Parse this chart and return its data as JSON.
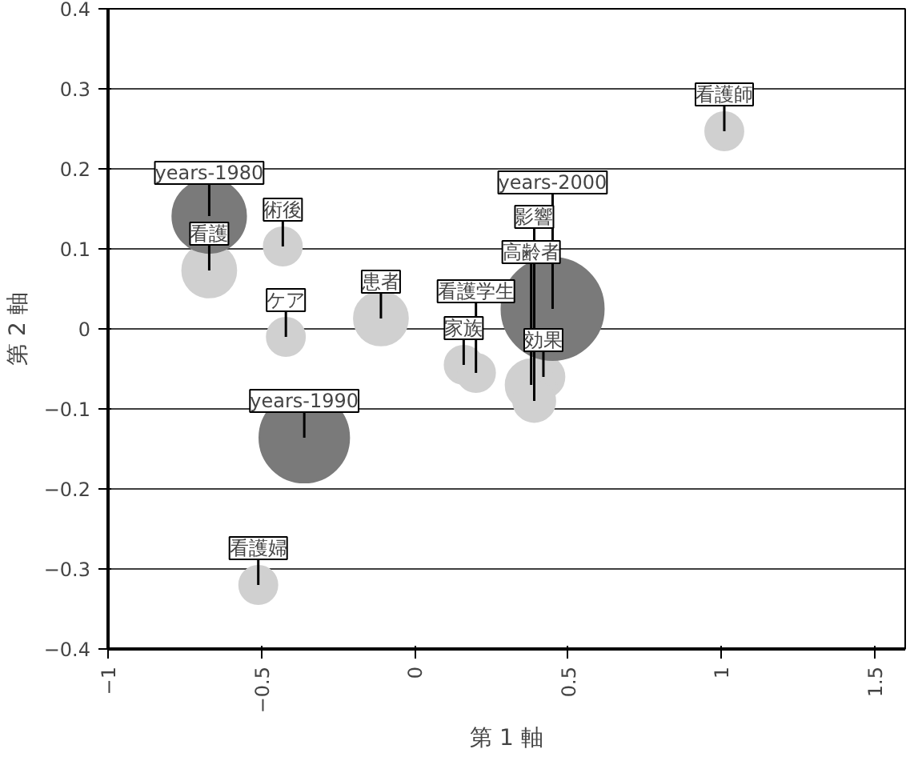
{
  "chart_data": {
    "type": "bubble",
    "xlabel": "第 1 軸",
    "ylabel": "第 2 軸",
    "xlim": [
      -1,
      1.6
    ],
    "ylim": [
      -0.4,
      0.4
    ],
    "xticks": [
      {
        "value": -1,
        "label": "−1"
      },
      {
        "value": -0.5,
        "label": "−0.5"
      },
      0,
      0.5,
      1,
      1.5
    ],
    "yticks": [
      {
        "value": -0.4,
        "label": "−0.4"
      },
      {
        "value": -0.3,
        "label": "−0.3"
      },
      {
        "value": -0.2,
        "label": "−0.2"
      },
      {
        "value": -0.1,
        "label": "−0.1"
      },
      0,
      0.1,
      0.2,
      0.3,
      0.4
    ],
    "grid": "y",
    "marker": "circle",
    "series": [
      {
        "color": "#d0d0d0",
        "x": [
          -0.67,
          -0.43,
          -0.42,
          -0.11,
          -0.51,
          1.01,
          0.16,
          0.2,
          0.42,
          0.38,
          0.39
        ],
        "values": [
          0.073,
          0.103,
          -0.01,
          0.013,
          -0.32,
          0.247,
          -0.045,
          -0.055,
          -0.06,
          -0.07,
          -0.09
        ],
        "sizes": [
          0.28,
          0.14,
          0.14,
          0.28,
          0.14,
          0.14,
          0.14,
          0.14,
          0.17,
          0.25,
          0.17
        ]
      },
      {
        "color": "#7a7a7a",
        "x": [
          -0.67,
          -0.36,
          0.45
        ],
        "values": [
          0.141,
          -0.136,
          0.025
        ],
        "sizes": [
          0.52,
          0.77,
          1
        ]
      }
    ],
    "annotations": [
      {
        "text": "看護",
        "x": -0.67,
        "y": 0.073
      },
      {
        "text": "術後",
        "x": -0.43,
        "y": 0.103
      },
      {
        "text": "ケア",
        "x": -0.42,
        "y": -0.01
      },
      {
        "text": "患者",
        "x": -0.11,
        "y": 0.013
      },
      {
        "text": "看護婦",
        "x": -0.51,
        "y": -0.32
      },
      {
        "text": "看護師",
        "x": 1.01,
        "y": 0.247
      },
      {
        "text": "家族",
        "x": 0.16,
        "y": -0.045
      },
      {
        "text": "看護学生",
        "x": 0.2,
        "y": -0.055
      },
      {
        "text": "効果",
        "x": 0.42,
        "y": -0.06
      },
      {
        "text": "高齢者",
        "x": 0.38,
        "y": -0.07
      },
      {
        "text": "影響",
        "x": 0.39,
        "y": -0.09
      },
      {
        "text": "years-1980",
        "x": -0.67,
        "y": 0.141
      },
      {
        "text": "years-1990",
        "x": -0.36,
        "y": -0.136
      },
      {
        "text": "years-2000",
        "x": 0.45,
        "y": 0.025
      }
    ]
  }
}
